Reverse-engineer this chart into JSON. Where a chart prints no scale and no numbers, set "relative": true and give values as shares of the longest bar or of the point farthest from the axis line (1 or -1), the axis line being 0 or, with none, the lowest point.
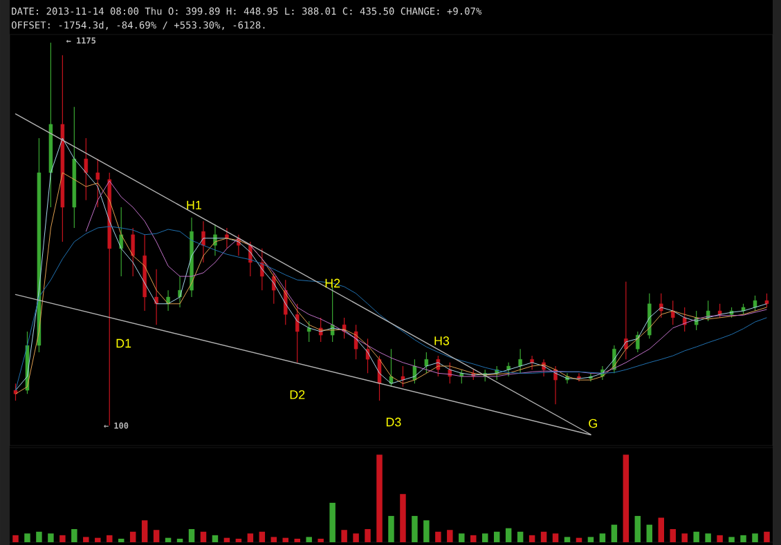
{
  "chart_data": [
    {
      "type": "candlestick",
      "title": "DATE: 2013-11-14 08:00 Thu O: 399.89 H: 448.95 L: 388.01 C: 435.50 CHANGE: +9.07%",
      "subtitle": "OFFSET: -1754.3d, -84.69% / +553.30%, -6128.",
      "categories": [
        null,
        null,
        null,
        null,
        null,
        null,
        null,
        null,
        null,
        null,
        null,
        null,
        null,
        null,
        null,
        null,
        null,
        null,
        null,
        null,
        null,
        null,
        null,
        null,
        null,
        null,
        null,
        null,
        null,
        null,
        null,
        null,
        null,
        null,
        null,
        null,
        null,
        null,
        null,
        null,
        null,
        null,
        null,
        null,
        null,
        null,
        null,
        null,
        null,
        null,
        null,
        null,
        null,
        null,
        null,
        null,
        null,
        null,
        null,
        null,
        null,
        null,
        null,
        null,
        null
      ],
      "ohlc": [
        [
          199,
          218,
          170,
          189
        ],
        [
          199,
          364,
          189,
          325
        ],
        [
          325,
          907,
          306,
          810
        ],
        [
          810,
          1175,
          713,
          946
        ],
        [
          946,
          1140,
          616,
          713
        ],
        [
          713,
          995,
          655,
          849
        ],
        [
          849,
          907,
          733,
          810
        ],
        [
          810,
          849,
          713,
          791
        ],
        [
          791,
          810,
          100,
          597
        ],
        [
          597,
          713,
          519,
          636
        ],
        [
          636,
          655,
          519,
          577
        ],
        [
          577,
          636,
          422,
          461
        ],
        [
          461,
          539,
          383,
          442
        ],
        [
          442,
          480,
          422,
          461
        ],
        [
          461,
          519,
          432,
          480
        ],
        [
          480,
          684,
          461,
          645
        ],
        [
          645,
          674,
          558,
          606
        ],
        [
          606,
          665,
          577,
          636
        ],
        [
          636,
          655,
          597,
          626
        ],
        [
          626,
          636,
          577,
          606
        ],
        [
          606,
          616,
          519,
          558
        ],
        [
          558,
          597,
          480,
          519
        ],
        [
          519,
          529,
          442,
          480
        ],
        [
          480,
          509,
          383,
          412
        ],
        [
          412,
          442,
          277,
          364
        ],
        [
          364,
          393,
          335,
          374
        ],
        [
          374,
          403,
          335,
          354
        ],
        [
          354,
          490,
          335,
          383
        ],
        [
          383,
          403,
          344,
          364
        ],
        [
          364,
          383,
          286,
          315
        ],
        [
          315,
          344,
          247,
          286
        ],
        [
          286,
          296,
          170,
          218
        ],
        [
          218,
          315,
          209,
          238
        ],
        [
          238,
          267,
          209,
          228
        ],
        [
          228,
          286,
          218,
          267
        ],
        [
          267,
          306,
          247,
          286
        ],
        [
          286,
          296,
          238,
          257
        ],
        [
          257,
          277,
          218,
          238
        ],
        [
          238,
          257,
          218,
          247
        ],
        [
          247,
          257,
          228,
          238
        ],
        [
          238,
          257,
          224,
          247
        ],
        [
          247,
          267,
          228,
          257
        ],
        [
          257,
          277,
          238,
          267
        ],
        [
          267,
          315,
          247,
          286
        ],
        [
          286,
          296,
          257,
          277
        ],
        [
          277,
          286,
          238,
          257
        ],
        [
          257,
          267,
          160,
          228
        ],
        [
          228,
          247,
          218,
          238
        ],
        [
          238,
          247,
          224,
          232
        ],
        [
          232,
          247,
          224,
          238
        ],
        [
          238,
          267,
          228,
          257
        ],
        [
          257,
          325,
          247,
          315
        ],
        [
          344,
          504,
          286,
          315
        ],
        [
          315,
          364,
          306,
          354
        ],
        [
          354,
          471,
          344,
          442
        ],
        [
          442,
          471,
          403,
          422
        ],
        [
          422,
          451,
          383,
          403
        ],
        [
          403,
          432,
          364,
          383
        ],
        [
          383,
          422,
          368,
          403
        ],
        [
          403,
          451,
          393,
          422
        ],
        [
          422,
          442,
          403,
          412
        ],
        [
          412,
          432,
          403,
          422
        ],
        [
          422,
          442,
          412,
          432
        ],
        [
          432,
          465,
          422,
          451
        ],
        [
          451,
          471,
          432,
          442
        ]
      ],
      "colors": [
        "#c8141e",
        "#3aa832",
        "#3aa832",
        "#3aa832",
        "#c8141e",
        "#3aa832",
        "#c8141e",
        "#c8141e",
        "#c8141e",
        "#3aa832",
        "#c8141e",
        "#c8141e",
        "#c8141e",
        "#3aa832",
        "#3aa832",
        "#3aa832",
        "#c8141e",
        "#3aa832",
        "#c8141e",
        "#c8141e",
        "#c8141e",
        "#c8141e",
        "#c8141e",
        "#c8141e",
        "#c8141e",
        "#3aa832",
        "#c8141e",
        "#3aa832",
        "#c8141e",
        "#c8141e",
        "#c8141e",
        "#c8141e",
        "#3aa832",
        "#c8141e",
        "#3aa832",
        "#3aa832",
        "#c8141e",
        "#c8141e",
        "#3aa832",
        "#c8141e",
        "#3aa832",
        "#3aa832",
        "#3aa832",
        "#3aa832",
        "#c8141e",
        "#c8141e",
        "#c8141e",
        "#3aa832",
        "#c8141e",
        "#3aa832",
        "#3aa832",
        "#3aa832",
        "#c8141e",
        "#3aa832",
        "#3aa832",
        "#c8141e",
        "#c8141e",
        "#c8141e",
        "#3aa832",
        "#3aa832",
        "#c8141e",
        "#3aa832",
        "#3aa832",
        "#3aa832",
        "#c8141e"
      ],
      "series": [
        {
          "type": "line",
          "color": "#a6d4ea",
          "values": [
            199,
            238,
            480,
            810,
            907,
            849,
            810,
            771,
            674,
            597,
            558,
            500,
            442,
            442,
            461,
            577,
            626,
            626,
            626,
            616,
            587,
            539,
            500,
            442,
            393,
            374,
            364,
            374,
            368,
            344,
            306,
            247,
            218,
            228,
            238,
            267,
            277,
            257,
            247,
            242,
            244,
            247,
            257,
            267,
            277,
            267,
            247,
            232,
            232,
            236,
            247,
            286,
            335,
            344,
            403,
            432,
            422,
            403,
            393,
            403,
            412,
            418,
            422,
            432,
            442
          ]
        },
        {
          "type": "line",
          "color": "#e0a050",
          "values": [
            189,
            209,
            364,
            655,
            810,
            791,
            771,
            781,
            733,
            636,
            577,
            548,
            480,
            442,
            442,
            500,
            577,
            616,
            626,
            620,
            606,
            568,
            519,
            471,
            422,
            383,
            368,
            368,
            370,
            354,
            325,
            286,
            238,
            218,
            228,
            247,
            267,
            267,
            257,
            247,
            242,
            244,
            247,
            257,
            267,
            271,
            257,
            238,
            228,
            228,
            238,
            267,
            315,
            344,
            374,
            412,
            422,
            412,
            403,
            399,
            403,
            407,
            412,
            422,
            432
          ]
        },
        {
          "type": "line",
          "color": "#c070c8",
          "values": [
            null,
            null,
            null,
            null,
            null,
            null,
            645,
            733,
            787,
            742,
            713,
            674,
            616,
            548,
            519,
            519,
            529,
            558,
            597,
            626,
            606,
            568,
            529,
            480,
            432,
            412,
            399,
            383,
            364,
            344,
            325,
            306,
            290,
            277,
            267,
            257,
            247,
            244,
            238,
            238,
            238,
            238,
            244,
            247,
            251,
            253,
            253,
            251,
            251,
            247,
            247,
            261,
            277,
            296,
            315,
            344,
            374,
            387,
            399,
            407,
            409,
            409,
            410,
            418,
            426
          ]
        },
        {
          "type": "line",
          "color": "#2070b0",
          "values": [
            199,
            325,
            461,
            509,
            568,
            616,
            639,
            655,
            659,
            655,
            649,
            636,
            639,
            651,
            645,
            620,
            606,
            593,
            581,
            573,
            566,
            554,
            539,
            523,
            509,
            506,
            504,
            500,
            490,
            471,
            442,
            412,
            387,
            364,
            341,
            321,
            306,
            292,
            282,
            273,
            263,
            255,
            249,
            247,
            247,
            249,
            251,
            251,
            251,
            249,
            247,
            249,
            257,
            267,
            277,
            286,
            296,
            310,
            321,
            333,
            344,
            356,
            372,
            391,
            403
          ]
        },
        {
          "type": "line",
          "color": "#b4b4b4",
          "values": [
            975,
            null,
            null,
            null,
            null,
            null,
            null,
            null,
            null,
            null,
            null,
            null,
            null,
            null,
            null,
            null,
            null,
            null,
            null,
            null,
            null,
            null,
            null,
            null,
            null,
            null,
            null,
            null,
            null,
            null,
            null,
            null,
            null,
            null,
            null,
            null,
            null,
            null,
            null,
            null,
            null,
            null,
            null,
            null,
            null,
            null,
            null,
            null,
            null,
            75,
            null,
            null,
            null,
            null,
            null,
            null,
            null,
            null,
            null,
            null,
            null,
            null,
            null,
            null,
            null
          ]
        },
        {
          "type": "line",
          "color": "#b4b4b4",
          "values": [
            468,
            null,
            null,
            null,
            null,
            null,
            null,
            null,
            null,
            null,
            null,
            null,
            null,
            null,
            null,
            null,
            null,
            null,
            null,
            null,
            null,
            null,
            null,
            null,
            null,
            null,
            null,
            null,
            null,
            null,
            null,
            null,
            null,
            null,
            null,
            null,
            null,
            null,
            null,
            null,
            null,
            null,
            null,
            null,
            null,
            null,
            null,
            null,
            null,
            74,
            null,
            null,
            null,
            null,
            null,
            null,
            null,
            null,
            null,
            null,
            null,
            null,
            null,
            null,
            null
          ]
        }
      ],
      "ylim": [
        44,
        1198
      ],
      "tick_labels": false,
      "annotations": [
        "H1",
        "H2",
        "H3",
        "D1",
        "D2",
        "D3",
        "G",
        "← 1175",
        "← 100"
      ]
    },
    {
      "type": "bar",
      "relative": true,
      "categories": [
        null,
        null,
        null,
        null,
        null,
        null,
        null,
        null,
        null,
        null,
        null,
        null,
        null,
        null,
        null,
        null,
        null,
        null,
        null,
        null,
        null,
        null,
        null,
        null,
        null,
        null,
        null,
        null,
        null,
        null,
        null,
        null,
        null,
        null,
        null,
        null,
        null,
        null,
        null,
        null,
        null,
        null,
        null,
        null,
        null,
        null,
        null,
        null,
        null,
        null,
        null,
        null,
        null,
        null,
        null,
        null,
        null,
        null,
        null,
        null,
        null,
        null,
        null,
        null,
        null
      ],
      "values": [
        0.08,
        0.1,
        0.12,
        0.1,
        0.08,
        0.15,
        0.06,
        0.05,
        0.08,
        0.04,
        0.12,
        0.25,
        0.14,
        0.05,
        0.04,
        0.15,
        0.12,
        0.08,
        0.05,
        0.04,
        0.1,
        0.12,
        0.06,
        0.05,
        0.04,
        0.06,
        0.04,
        0.45,
        0.14,
        0.1,
        0.15,
        1,
        0.3,
        0.55,
        0.3,
        0.25,
        0.12,
        0.14,
        0.1,
        0.08,
        0.1,
        0.12,
        0.16,
        0.12,
        0.08,
        0.12,
        0.1,
        0.06,
        0.05,
        0.06,
        0.1,
        0.2,
        1,
        0.3,
        0.2,
        0.28,
        0.15,
        0.1,
        0.12,
        0.1,
        0.08,
        0.06,
        0.08,
        0.1,
        0.12
      ],
      "colors": [
        "#c8141e",
        "#3aa832",
        "#3aa832",
        "#3aa832",
        "#c8141e",
        "#3aa832",
        "#c8141e",
        "#c8141e",
        "#c8141e",
        "#3aa832",
        "#c8141e",
        "#c8141e",
        "#c8141e",
        "#3aa832",
        "#3aa832",
        "#3aa832",
        "#c8141e",
        "#3aa832",
        "#c8141e",
        "#c8141e",
        "#c8141e",
        "#c8141e",
        "#c8141e",
        "#c8141e",
        "#c8141e",
        "#3aa832",
        "#c8141e",
        "#3aa832",
        "#c8141e",
        "#c8141e",
        "#c8141e",
        "#c8141e",
        "#3aa832",
        "#c8141e",
        "#3aa832",
        "#3aa832",
        "#c8141e",
        "#c8141e",
        "#3aa832",
        "#c8141e",
        "#3aa832",
        "#3aa832",
        "#3aa832",
        "#3aa832",
        "#c8141e",
        "#c8141e",
        "#c8141e",
        "#3aa832",
        "#c8141e",
        "#3aa832",
        "#3aa832",
        "#3aa832",
        "#c8141e",
        "#3aa832",
        "#3aa832",
        "#c8141e",
        "#c8141e",
        "#c8141e",
        "#3aa832",
        "#3aa832",
        "#c8141e",
        "#3aa832",
        "#3aa832",
        "#3aa832",
        "#c8141e"
      ]
    }
  ]
}
